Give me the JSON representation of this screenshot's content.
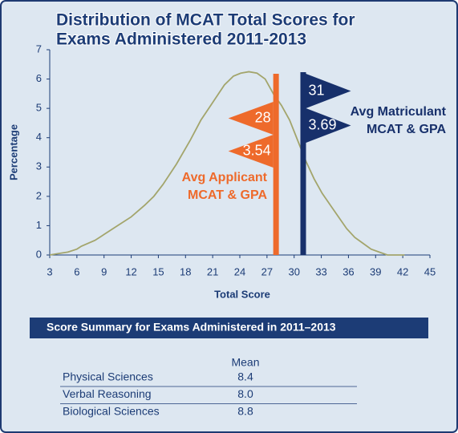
{
  "chart_data": {
    "type": "line",
    "title": [
      "Distribution of MCAT Total Scores for",
      "Exams Administered 2011-2013"
    ],
    "x_label": "Total Score",
    "y_label": "Percentage",
    "x": [
      3,
      4,
      5,
      6,
      6.5,
      8,
      9,
      10.5,
      12,
      13.5,
      14.5,
      15.5,
      17,
      18.5,
      19.7,
      21,
      22.3,
      23.3,
      24.1,
      25,
      25.9,
      26.8,
      27.7,
      28.6,
      29.5,
      30.4,
      31.3,
      32.2,
      33.1,
      34,
      34.9,
      35.8,
      36.7,
      37.6,
      38.5,
      39.4,
      40.3,
      42.2
    ],
    "series": [
      {
        "color": "#a3a56c",
        "values": [
          0,
          0.05,
          0.1,
          0.2,
          0.3,
          0.5,
          0.7,
          1.0,
          1.3,
          1.7,
          2.0,
          2.4,
          3.1,
          3.9,
          4.6,
          5.2,
          5.8,
          6.1,
          6.2,
          6.25,
          6.2,
          6.0,
          5.5,
          5.1,
          4.6,
          3.9,
          3.2,
          2.6,
          2.1,
          1.7,
          1.3,
          0.9,
          0.6,
          0.4,
          0.2,
          0.1,
          0,
          0
        ]
      }
    ],
    "xlim": [
      3,
      45
    ],
    "xticks": [
      3,
      6,
      9,
      12,
      15,
      18,
      21,
      24,
      27,
      30,
      33,
      36,
      39,
      42,
      45
    ],
    "ylim": [
      0,
      7
    ],
    "yticks": [
      0,
      1,
      2,
      3,
      4,
      5,
      6,
      7
    ],
    "markers": [
      {
        "label": [
          "Avg Applicant",
          "MCAT & GPA"
        ],
        "mcat": 28,
        "gpa": 3.54,
        "color": "#ee6a2b",
        "side": "left"
      },
      {
        "label": [
          "Avg Matriculant",
          "MCAT & GPA"
        ],
        "mcat": 31,
        "gpa": 3.69,
        "color": "#17306b",
        "side": "right"
      }
    ]
  },
  "summary_table": {
    "title": "Score Summary for Exams Administered in 2011–2013",
    "column": "Mean",
    "rows": [
      [
        "Physical Sciences",
        "8.4"
      ],
      [
        "Verbal Reasoning",
        "8.0"
      ],
      [
        "Biological Sciences",
        "8.8"
      ]
    ]
  }
}
